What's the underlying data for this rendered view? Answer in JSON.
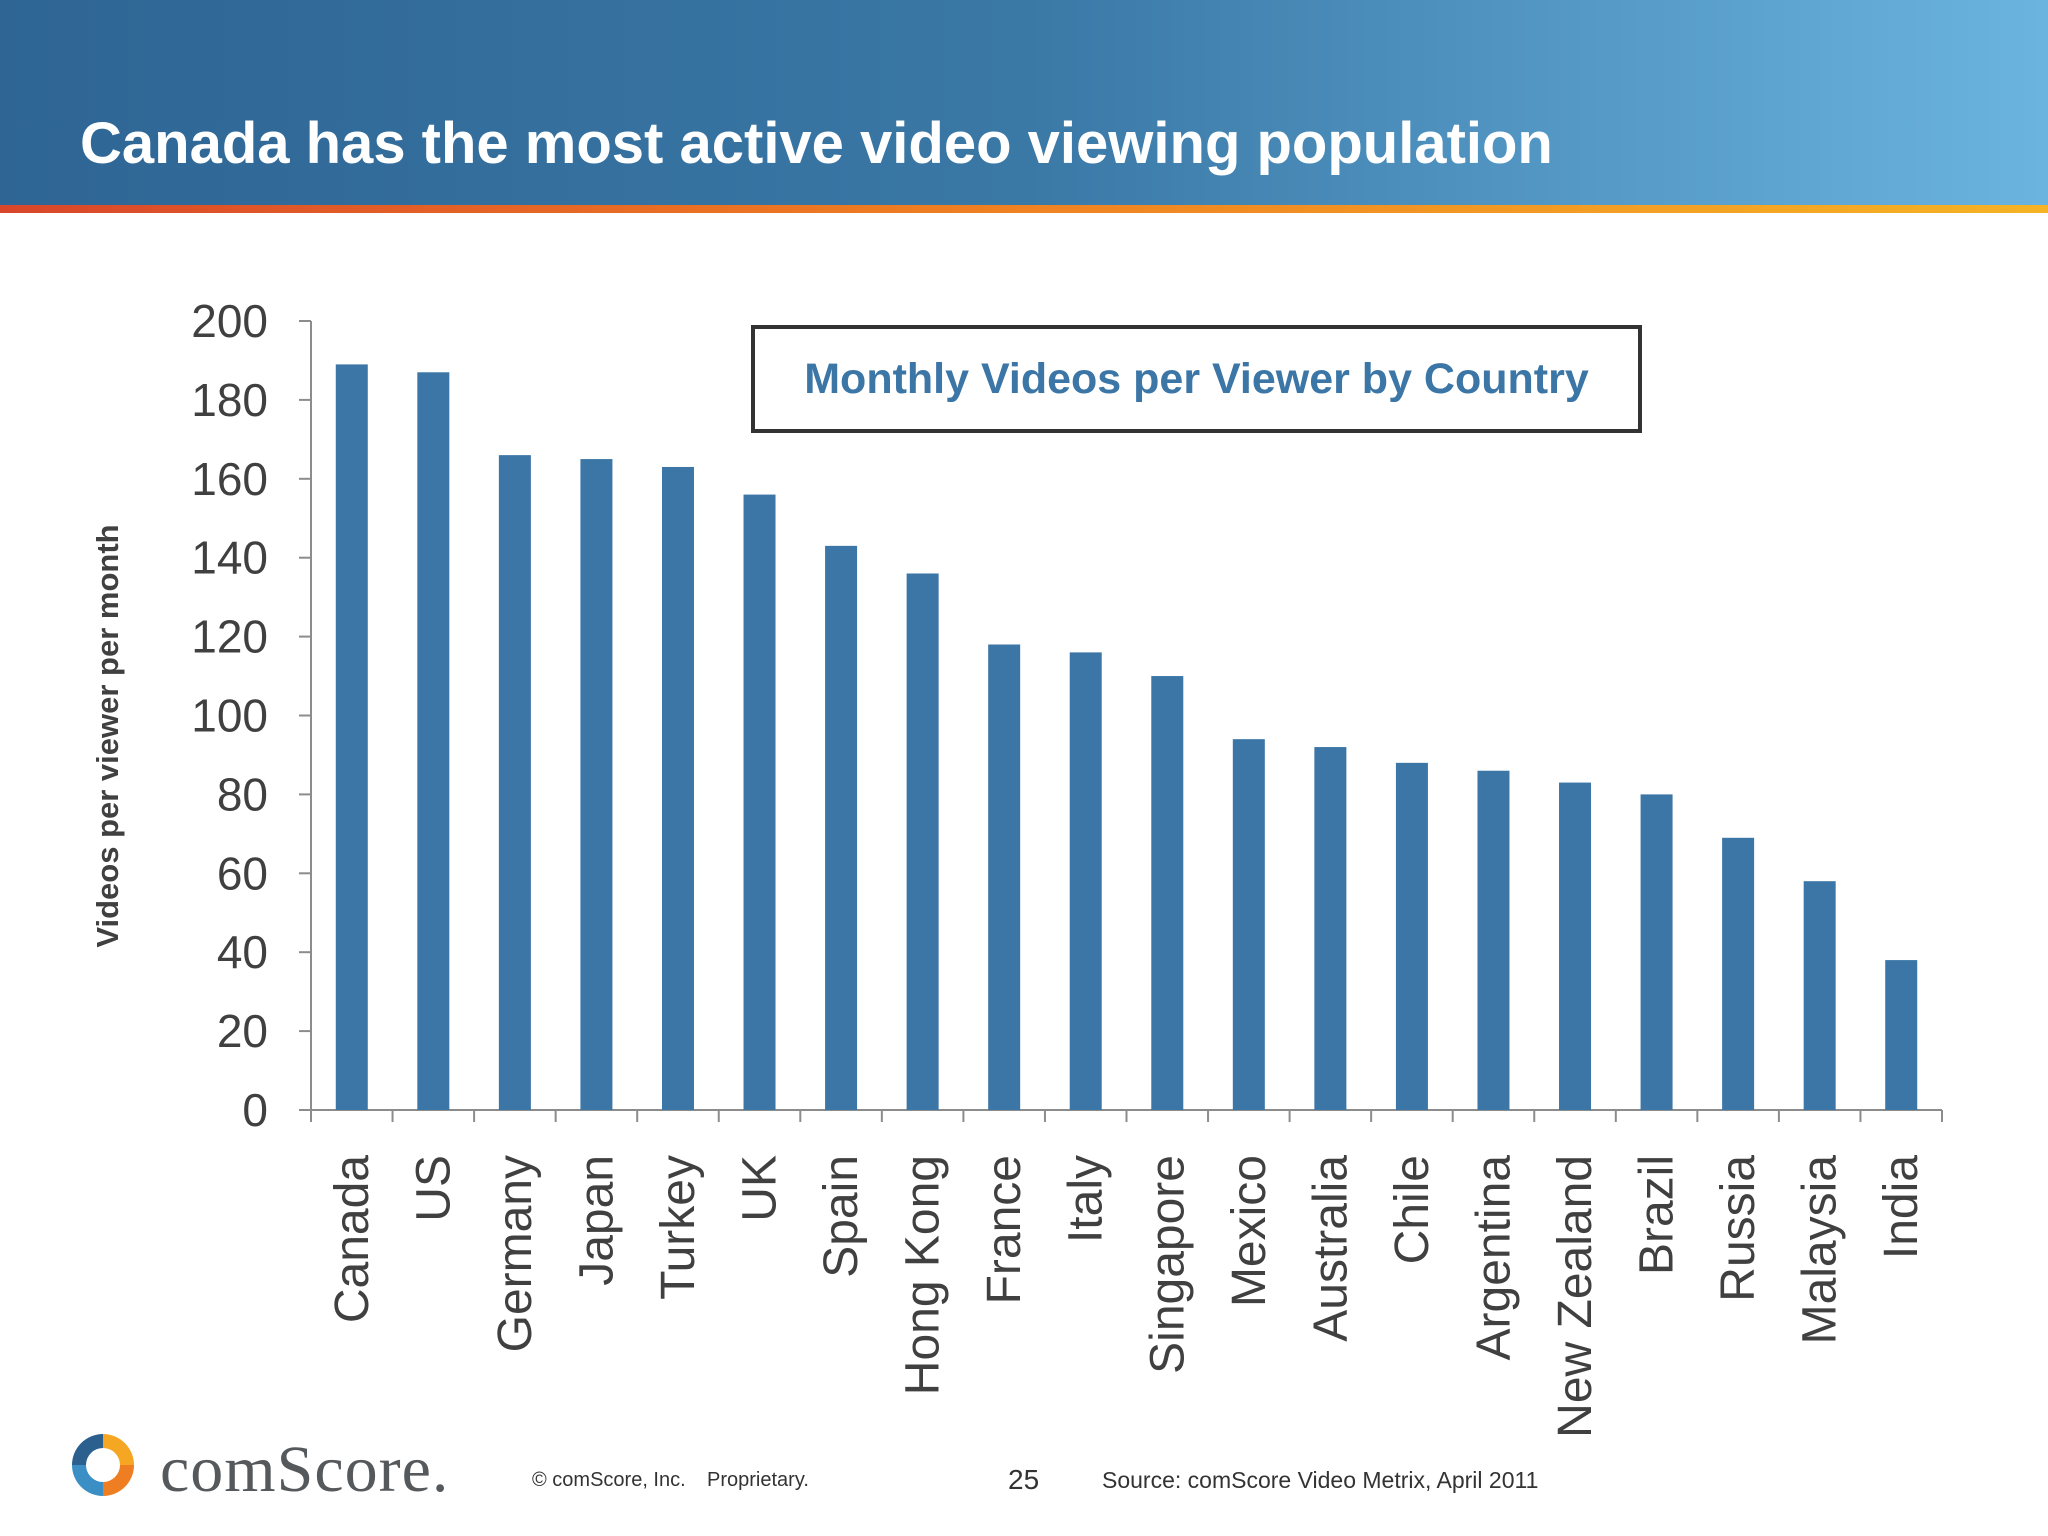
{
  "slide": {
    "title": "Canada has the most active video viewing population",
    "page_number": "25",
    "copyright": "© comScore, Inc.",
    "proprietary": "Proprietary.",
    "source": "Source:  comScore Video Metrix, April 2011",
    "logo_text": "comScore."
  },
  "colors": {
    "bar": "#3b76a6",
    "header_dark": "#2e6594",
    "header_light": "#6bb4e0",
    "stripe_orange": "#ef7d22"
  },
  "chart_data": {
    "type": "bar",
    "title": "Monthly Videos per Viewer by Country",
    "ylabel": "Videos per viewer per month",
    "xlabel": "",
    "ylim": [
      0,
      200
    ],
    "yticks": [
      0,
      20,
      40,
      60,
      80,
      100,
      120,
      140,
      160,
      180,
      200
    ],
    "grid": false,
    "categories": [
      "Canada",
      "US",
      "Germany",
      "Japan",
      "Turkey",
      "UK",
      "Spain",
      "Hong Kong",
      "France",
      "Italy",
      "Singapore",
      "Mexico",
      "Australia",
      "Chile",
      "Argentina",
      "New Zealand",
      "Brazil",
      "Russia",
      "Malaysia",
      "India"
    ],
    "values": [
      189,
      187,
      166,
      165,
      163,
      156,
      143,
      136,
      118,
      116,
      110,
      94,
      92,
      88,
      86,
      83,
      80,
      69,
      58,
      38
    ]
  }
}
